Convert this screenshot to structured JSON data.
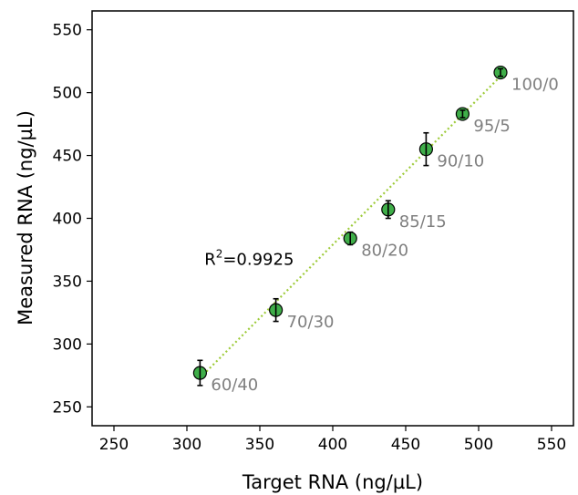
{
  "chart_data": {
    "type": "scatter",
    "xlabel": "Target RNA (ng/µL)",
    "ylabel": "Measured RNA (ng/µL)",
    "xlim": [
      235,
      565
    ],
    "ylim": [
      235,
      565
    ],
    "xticks": [
      250,
      300,
      350,
      400,
      450,
      500,
      550
    ],
    "yticks": [
      250,
      300,
      350,
      400,
      450,
      500,
      550
    ],
    "grid": false,
    "points": [
      {
        "label": "60/40",
        "x": 309,
        "y": 277,
        "err": 10
      },
      {
        "label": "70/30",
        "x": 361,
        "y": 327,
        "err": 9
      },
      {
        "label": "80/20",
        "x": 412,
        "y": 384,
        "err": 5
      },
      {
        "label": "85/15",
        "x": 438,
        "y": 407,
        "err": 7
      },
      {
        "label": "90/10",
        "x": 464,
        "y": 455,
        "err": 13
      },
      {
        "label": "95/5",
        "x": 489,
        "y": 483,
        "err": 3
      },
      {
        "label": "100/0",
        "x": 515,
        "y": 516,
        "err": 3
      }
    ],
    "trendline": {
      "x1": 309,
      "y1": 273,
      "x2": 515,
      "y2": 513
    },
    "annotation": {
      "text": "R",
      "superscript": "2",
      "value": "=0.9925",
      "x": 312,
      "y": 363
    },
    "colors": {
      "marker": "#3fae49",
      "marker_edge": "#000000",
      "trendline": "#9ecb3a",
      "point_label": "#7f7f7f"
    }
  }
}
